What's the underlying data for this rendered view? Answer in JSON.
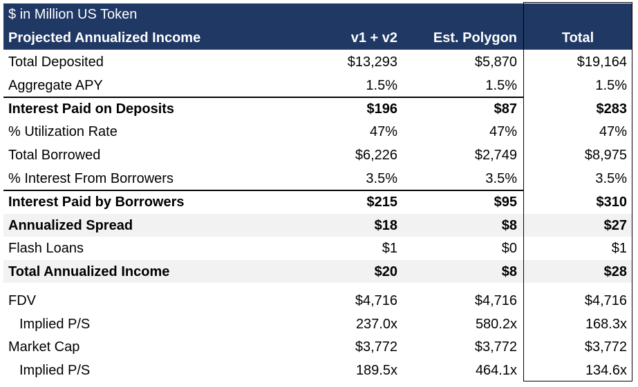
{
  "header": {
    "unit": "$ in Million US Token",
    "columns": [
      "Projected Annualized Income",
      "v1 + v2",
      "Est. Polygon",
      "Total"
    ]
  },
  "table": {
    "rows": [
      [
        "Total Deposited",
        "$13,293",
        "$5,870",
        "$19,164"
      ],
      [
        "Aggregate APY",
        "1.5%",
        "1.5%",
        "1.5%"
      ],
      [
        "Interest Paid on Deposits",
        "$196",
        "$87",
        "$283"
      ],
      [
        "% Utilization Rate",
        "47%",
        "47%",
        "47%"
      ],
      [
        "Total Borrowed",
        "$6,226",
        "$2,749",
        "$8,975"
      ],
      [
        "% Interest From Borrowers",
        "3.5%",
        "3.5%",
        "3.5%"
      ],
      [
        "Interest Paid by Borrowers",
        "$215",
        "$95",
        "$310"
      ],
      [
        "Annualized Spread",
        "$18",
        "$8",
        "$27"
      ],
      [
        "Flash Loans",
        "$1",
        "$0",
        "$1"
      ],
      [
        "Total Annualized Income",
        "$20",
        "$8",
        "$28"
      ],
      [
        "FDV",
        "$4,716",
        "$4,716",
        "$4,716"
      ],
      [
        "Implied P/S",
        "237.0x",
        "580.2x",
        "168.3x"
      ],
      [
        "Market Cap",
        "$3,772",
        "$3,772",
        "$3,772"
      ],
      [
        "Implied P/S",
        "189.5x",
        "464.1x",
        "134.6x"
      ]
    ]
  }
}
